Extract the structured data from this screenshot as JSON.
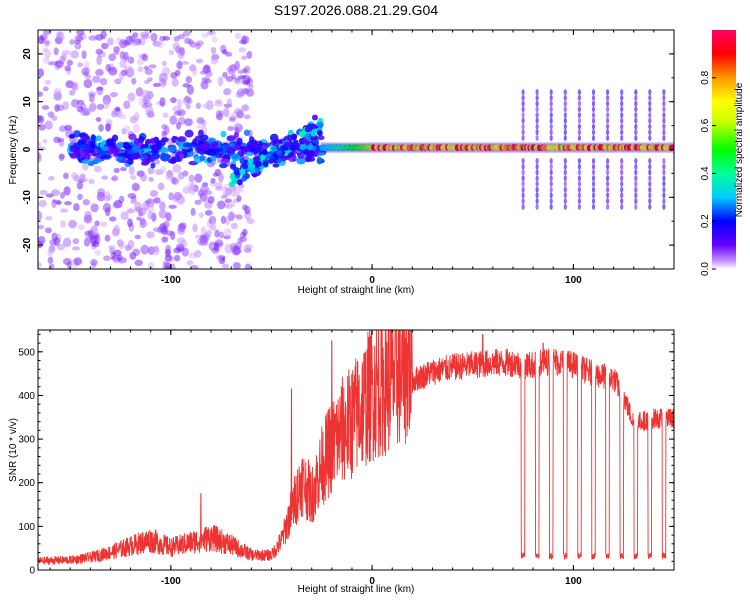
{
  "figure_title": "S197.2026.088.21.29.G04",
  "chart_data": [
    {
      "type": "heatmap",
      "title": "S197.2026.088.21.29.G04",
      "xlabel": "Height of straight line (km)",
      "ylabel": "Frequency (Hz)",
      "xlim": [
        -166,
        150
      ],
      "ylim": [
        -25,
        25
      ],
      "xticks": [
        -100,
        0,
        100
      ],
      "yticks": [
        -20,
        -10,
        0,
        10,
        20
      ],
      "colorbar": {
        "label": "Normalized spectral amplitude",
        "range": [
          0,
          1
        ],
        "ticks": [
          0.0,
          0.2,
          0.4,
          0.6,
          0.8
        ],
        "tick_labels": [
          "0.0",
          "0.2",
          "0.4",
          "0.6",
          "0.8"
        ],
        "colors": [
          "#ffffff",
          "#cc99ff",
          "#6600ff",
          "#0000ff",
          "#00ccff",
          "#00ff99",
          "#00ff00",
          "#ccff00",
          "#ffff00",
          "#ff9900",
          "#ff0000",
          "#ff0066"
        ]
      },
      "features": [
        {
          "name": "main tone",
          "x_range": [
            -20,
            150
          ],
          "frequency_hz": 0.5,
          "peak_amplitude": 0.9
        },
        {
          "name": "scattered noise",
          "x_range": [
            -166,
            -60
          ],
          "frequency_hz_range": [
            -25,
            25
          ],
          "peak_amplitude": 0.4
        },
        {
          "name": "diagonal drift",
          "x_range": [
            -70,
            -25
          ],
          "frequency_hz_range": [
            -6,
            5
          ],
          "peak_amplitude": 0.35
        }
      ]
    },
    {
      "type": "line",
      "title": "",
      "xlabel": "Height of straight line (km)",
      "ylabel": "SNR (10 * v/v)",
      "xlim": [
        -166,
        150
      ],
      "ylim": [
        0,
        550
      ],
      "xticks": [
        -100,
        0,
        100
      ],
      "yticks": [
        0,
        100,
        200,
        300,
        400,
        500
      ],
      "color": "#ee3333",
      "series": [
        {
          "name": "SNR",
          "x": [
            -166,
            -150,
            -140,
            -130,
            -120,
            -110,
            -100,
            -90,
            -80,
            -70,
            -60,
            -50,
            -45,
            -40,
            -35,
            -30,
            -25,
            -20,
            -15,
            -10,
            -5,
            0,
            10,
            20,
            30,
            40,
            50,
            60,
            70,
            75,
            80,
            90,
            100,
            110,
            120,
            125,
            130,
            140,
            150
          ],
          "values": [
            18,
            20,
            25,
            35,
            48,
            60,
            45,
            55,
            65,
            50,
            30,
            30,
            60,
            120,
            180,
            150,
            210,
            250,
            280,
            300,
            330,
            360,
            390,
            425,
            445,
            455,
            460,
            465,
            465,
            460,
            460,
            470,
            460,
            440,
            430,
            390,
            330,
            340,
            340
          ]
        }
      ],
      "dropouts": [
        {
          "x": 75,
          "value": 25
        },
        {
          "x": 82,
          "value": 25
        },
        {
          "x": 89,
          "value": 25
        },
        {
          "x": 96,
          "value": 25
        },
        {
          "x": 103,
          "value": 25
        },
        {
          "x": 110,
          "value": 25
        },
        {
          "x": 117,
          "value": 25
        },
        {
          "x": 124,
          "value": 25
        },
        {
          "x": 131,
          "value": 25
        },
        {
          "x": 138,
          "value": 25
        },
        {
          "x": 145,
          "value": 25
        }
      ],
      "spikes": [
        {
          "x": -20,
          "value": 525
        },
        {
          "x": -40,
          "value": 415
        },
        {
          "x": -85,
          "value": 175
        },
        {
          "x": 55,
          "value": 540
        },
        {
          "x": 85,
          "value": 520
        }
      ]
    }
  ]
}
